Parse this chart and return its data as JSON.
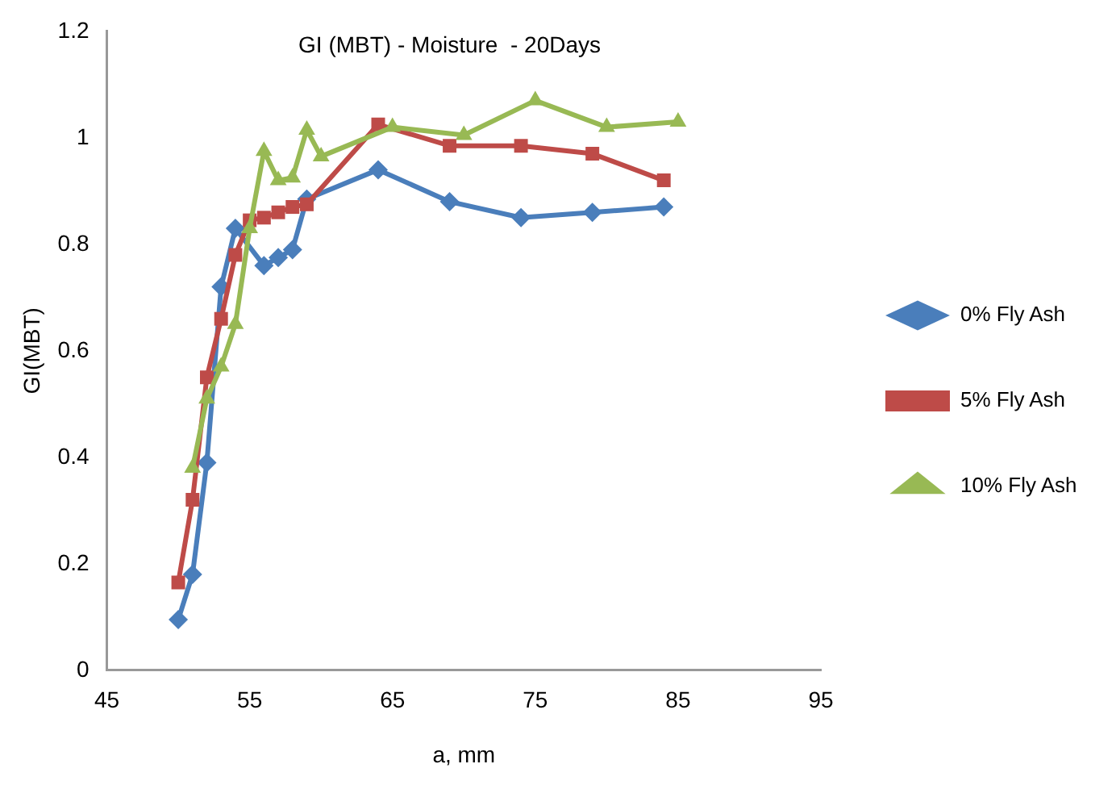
{
  "chart_data": {
    "type": "line",
    "title": "GI (MBT) - Moisture  - 20Days",
    "xlabel": "a, mm",
    "ylabel": "GI(MBT)",
    "xlim": [
      45,
      95
    ],
    "xticks": [
      45,
      55,
      65,
      75,
      85,
      95
    ],
    "ylim": [
      0,
      1.2
    ],
    "yticks": [
      0,
      0.2,
      0.4,
      0.6,
      0.8,
      1,
      1.2
    ],
    "grid": false,
    "legend": "right",
    "line_style": "solid",
    "series": [
      {
        "name": "0% Fly Ash",
        "color": "#4a7ebb",
        "marker": "diamond",
        "x": [
          50,
          51,
          52,
          53,
          54,
          56,
          57,
          58,
          59,
          64,
          69,
          74,
          79,
          84
        ],
        "values": [
          0.095,
          0.18,
          0.39,
          0.72,
          0.83,
          0.76,
          0.775,
          0.79,
          0.885,
          0.94,
          0.88,
          0.85,
          0.86,
          0.87
        ]
      },
      {
        "name": "5% Fly Ash",
        "color": "#be4b48",
        "marker": "square",
        "x": [
          50,
          51,
          52,
          53,
          54,
          55,
          56,
          57,
          58,
          59,
          64,
          69,
          74,
          79,
          84
        ],
        "values": [
          0.165,
          0.32,
          0.55,
          0.66,
          0.78,
          0.845,
          0.85,
          0.86,
          0.87,
          0.875,
          1.025,
          0.985,
          0.985,
          0.97,
          0.92
        ]
      },
      {
        "name": "10% Fly Ash",
        "color": "#98b954",
        "marker": "triangle",
        "x": [
          51,
          52,
          53,
          54,
          55,
          56,
          57,
          58,
          59,
          60,
          65,
          70,
          75,
          80,
          85
        ],
        "values": [
          0.38,
          0.51,
          0.57,
          0.65,
          0.83,
          0.975,
          0.92,
          0.925,
          1.015,
          0.965,
          1.02,
          1.005,
          1.07,
          1.02,
          1.03
        ]
      }
    ]
  }
}
